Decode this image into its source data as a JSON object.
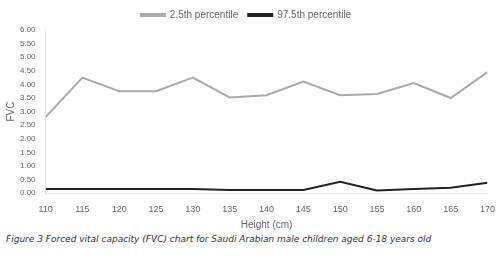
{
  "chart_data": {
    "type": "line",
    "caption": "Figure 3 Forced vital capacity (FVC) chart for Saudi Arabian male children aged 6-18 years old",
    "xlabel": "Height (cm)",
    "ylabel": "FVC",
    "x": [
      110,
      115,
      120,
      125,
      130,
      135,
      140,
      145,
      150,
      155,
      160,
      165,
      170
    ],
    "series": [
      {
        "name": "2.5th percentile",
        "color": "#aaaaaa",
        "values": [
          2.8,
          4.25,
          3.75,
          3.75,
          4.25,
          3.52,
          3.6,
          4.1,
          3.6,
          3.65,
          4.05,
          3.5,
          4.45
        ]
      },
      {
        "name": "97.5th percentile",
        "color": "#222222",
        "values": [
          0.15,
          0.15,
          0.15,
          0.15,
          0.15,
          0.12,
          0.12,
          0.12,
          0.42,
          0.1,
          0.15,
          0.2,
          0.38
        ]
      }
    ],
    "xlim": [
      110,
      170
    ],
    "xticks": [
      110,
      115,
      120,
      125,
      130,
      135,
      140,
      145,
      150,
      155,
      160,
      165,
      170
    ],
    "ylim": [
      0.0,
      6.0
    ],
    "yticks": [
      {
        "value": 0.0,
        "label": "0.00"
      },
      {
        "value": 0.5,
        "label": "0.50"
      },
      {
        "value": 1.0,
        "label": "1.00"
      },
      {
        "value": 1.5,
        "label": "1.50"
      },
      {
        "value": 2.0,
        "label": "2.00"
      },
      {
        "value": 2.5,
        "label": "2.50"
      },
      {
        "value": 3.0,
        "label": "3.00"
      },
      {
        "value": 3.5,
        "label": "3.50"
      },
      {
        "value": 4.0,
        "label": "4.00"
      },
      {
        "value": 4.5,
        "label": "4.50"
      },
      {
        "value": 5.0,
        "label": "5.00"
      },
      {
        "value": 5.5,
        "label": "5.50"
      },
      {
        "value": 6.0,
        "label": "6.00"
      }
    ],
    "grid": false,
    "legend": "top"
  }
}
